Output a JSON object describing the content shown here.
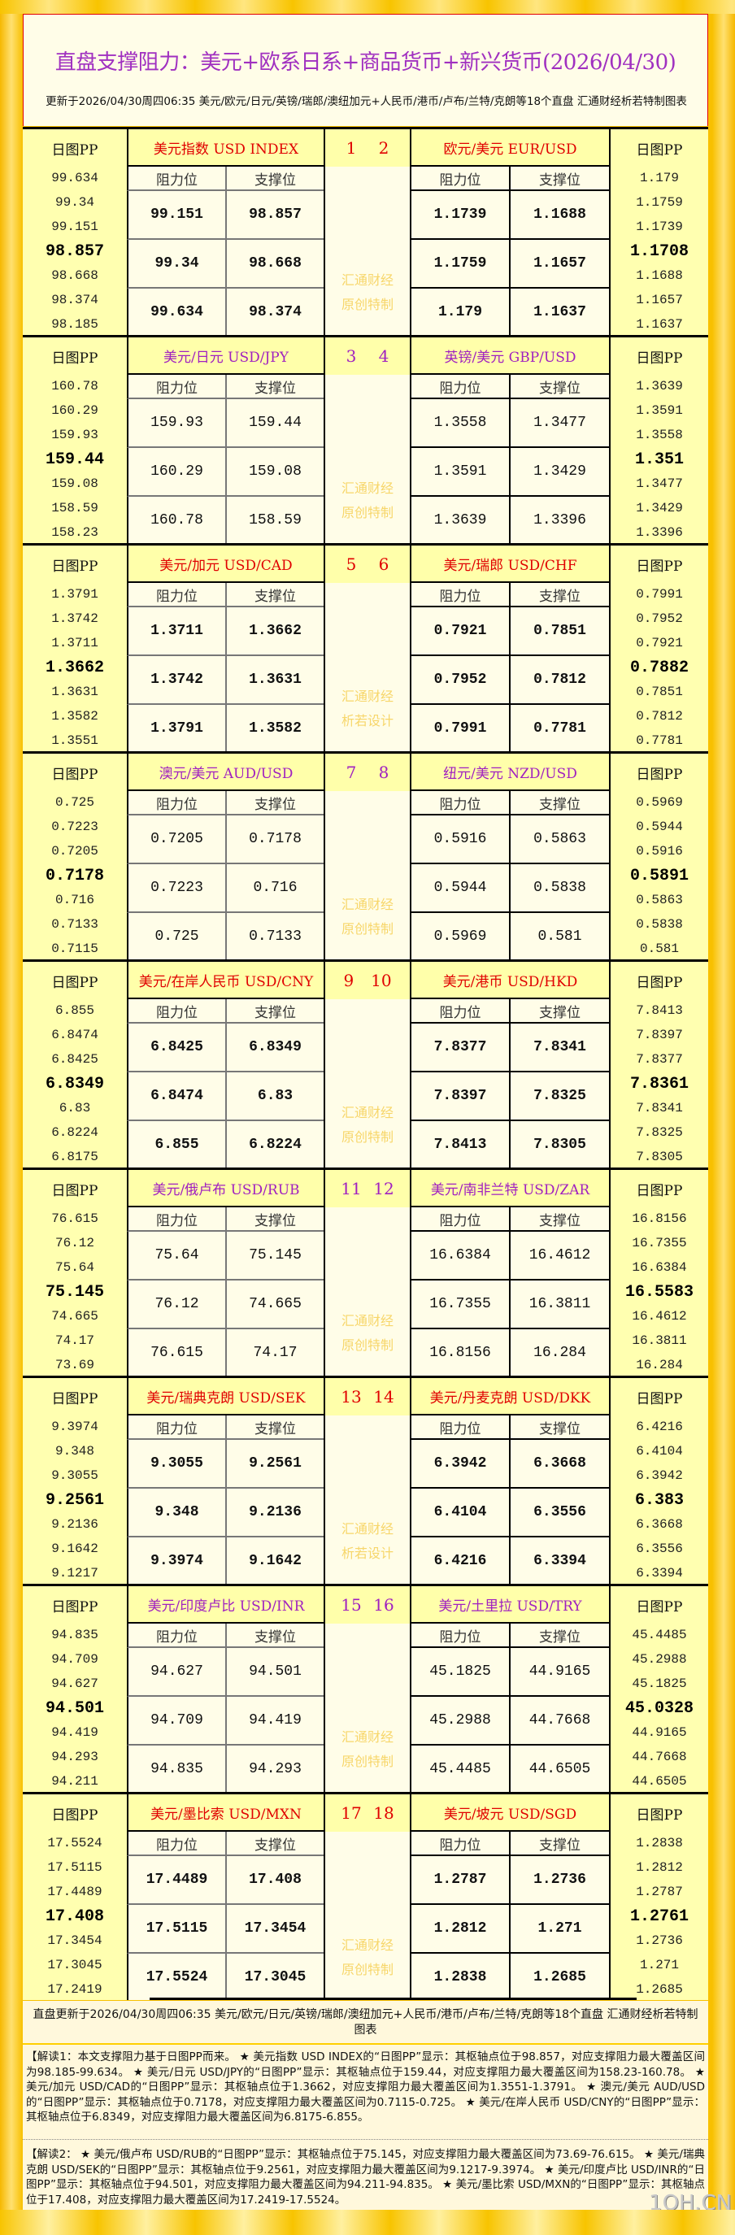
{
  "header": {
    "title": "直盘支撑阻力：美元+欧系日系+商品货币+新兴货币(2026/04/30)",
    "subtitle": "更新于2026/04/30周四06:35 美元/欧元/日元/英镑/瑞郎/澳纽加元+人民币/港币/卢布/兰特/克朗等18个直盘 汇通财经析若特制图表"
  },
  "labels": {
    "pp": "日图PP",
    "resistance": "阻力位",
    "support": "支撑位",
    "wm1": "汇通财经"
  },
  "colors": {
    "red": "#e00000",
    "purple": "#a020c0",
    "frame": "#f8c000",
    "pp_bg": "#ffffb0"
  },
  "blocks": [
    {
      "color": "red",
      "bold": true,
      "wm2": "原创特制",
      "nums": [
        "1",
        "2"
      ],
      "left": {
        "name": "美元指数 USD INDEX",
        "pp": [
          "99.634",
          "99.34",
          "99.151",
          "98.857",
          "98.668",
          "98.374",
          "98.185"
        ],
        "rows": [
          [
            "99.151",
            "98.857"
          ],
          [
            "99.34",
            "98.668"
          ],
          [
            "99.634",
            "98.374"
          ]
        ]
      },
      "right": {
        "name": "欧元/美元 EUR/USD",
        "pp": [
          "1.179",
          "1.1759",
          "1.1739",
          "1.1708",
          "1.1688",
          "1.1657",
          "1.1637"
        ],
        "rows": [
          [
            "1.1739",
            "1.1688"
          ],
          [
            "1.1759",
            "1.1657"
          ],
          [
            "1.179",
            "1.1637"
          ]
        ]
      }
    },
    {
      "color": "purple",
      "bold": false,
      "wm2": "原创特制",
      "nums": [
        "3",
        "4"
      ],
      "left": {
        "name": "美元/日元 USD/JPY",
        "pp": [
          "160.78",
          "160.29",
          "159.93",
          "159.44",
          "159.08",
          "158.59",
          "158.23"
        ],
        "rows": [
          [
            "159.93",
            "159.44"
          ],
          [
            "160.29",
            "159.08"
          ],
          [
            "160.78",
            "158.59"
          ]
        ]
      },
      "right": {
        "name": "英镑/美元 GBP/USD",
        "pp": [
          "1.3639",
          "1.3591",
          "1.3558",
          "1.351",
          "1.3477",
          "1.3429",
          "1.3396"
        ],
        "rows": [
          [
            "1.3558",
            "1.3477"
          ],
          [
            "1.3591",
            "1.3429"
          ],
          [
            "1.3639",
            "1.3396"
          ]
        ]
      }
    },
    {
      "color": "red",
      "bold": true,
      "wm2": "析若设计",
      "nums": [
        "5",
        "6"
      ],
      "left": {
        "name": "美元/加元 USD/CAD",
        "pp": [
          "1.3791",
          "1.3742",
          "1.3711",
          "1.3662",
          "1.3631",
          "1.3582",
          "1.3551"
        ],
        "rows": [
          [
            "1.3711",
            "1.3662"
          ],
          [
            "1.3742",
            "1.3631"
          ],
          [
            "1.3791",
            "1.3582"
          ]
        ]
      },
      "right": {
        "name": "美元/瑞郎 USD/CHF",
        "pp": [
          "0.7991",
          "0.7952",
          "0.7921",
          "0.7882",
          "0.7851",
          "0.7812",
          "0.7781"
        ],
        "rows": [
          [
            "0.7921",
            "0.7851"
          ],
          [
            "0.7952",
            "0.7812"
          ],
          [
            "0.7991",
            "0.7781"
          ]
        ]
      }
    },
    {
      "color": "purple",
      "bold": false,
      "wm2": "原创特制",
      "nums": [
        "7",
        "8"
      ],
      "left": {
        "name": "澳元/美元 AUD/USD",
        "pp": [
          "0.725",
          "0.7223",
          "0.7205",
          "0.7178",
          "0.716",
          "0.7133",
          "0.7115"
        ],
        "rows": [
          [
            "0.7205",
            "0.7178"
          ],
          [
            "0.7223",
            "0.716"
          ],
          [
            "0.725",
            "0.7133"
          ]
        ]
      },
      "right": {
        "name": "纽元/美元 NZD/USD",
        "pp": [
          "0.5969",
          "0.5944",
          "0.5916",
          "0.5891",
          "0.5863",
          "0.5838",
          "0.581"
        ],
        "rows": [
          [
            "0.5916",
            "0.5863"
          ],
          [
            "0.5944",
            "0.5838"
          ],
          [
            "0.5969",
            "0.581"
          ]
        ]
      }
    },
    {
      "color": "red",
      "bold": true,
      "wm2": "原创特制",
      "nums": [
        "9",
        "10"
      ],
      "left": {
        "name": "美元/在岸人民币 USD/CNY",
        "pp": [
          "6.855",
          "6.8474",
          "6.8425",
          "6.8349",
          "6.83",
          "6.8224",
          "6.8175"
        ],
        "rows": [
          [
            "6.8425",
            "6.8349"
          ],
          [
            "6.8474",
            "6.83"
          ],
          [
            "6.855",
            "6.8224"
          ]
        ]
      },
      "right": {
        "name": "美元/港币 USD/HKD",
        "pp": [
          "7.8413",
          "7.8397",
          "7.8377",
          "7.8361",
          "7.8341",
          "7.8325",
          "7.8305"
        ],
        "rows": [
          [
            "7.8377",
            "7.8341"
          ],
          [
            "7.8397",
            "7.8325"
          ],
          [
            "7.8413",
            "7.8305"
          ]
        ]
      }
    },
    {
      "color": "purple",
      "bold": false,
      "wm2": "原创特制",
      "nums": [
        "11",
        "12"
      ],
      "left": {
        "name": "美元/俄卢布 USD/RUB",
        "pp": [
          "76.615",
          "76.12",
          "75.64",
          "75.145",
          "74.665",
          "74.17",
          "73.69"
        ],
        "rows": [
          [
            "75.64",
            "75.145"
          ],
          [
            "76.12",
            "74.665"
          ],
          [
            "76.615",
            "74.17"
          ]
        ]
      },
      "right": {
        "name": "美元/南非兰特 USD/ZAR",
        "pp": [
          "16.8156",
          "16.7355",
          "16.6384",
          "16.5583",
          "16.4612",
          "16.3811",
          "16.284"
        ],
        "rows": [
          [
            "16.6384",
            "16.4612"
          ],
          [
            "16.7355",
            "16.3811"
          ],
          [
            "16.8156",
            "16.284"
          ]
        ]
      }
    },
    {
      "color": "red",
      "bold": true,
      "wm2": "析若设计",
      "nums": [
        "13",
        "14"
      ],
      "left": {
        "name": "美元/瑞典克朗 USD/SEK",
        "pp": [
          "9.3974",
          "9.348",
          "9.3055",
          "9.2561",
          "9.2136",
          "9.1642",
          "9.1217"
        ],
        "rows": [
          [
            "9.3055",
            "9.2561"
          ],
          [
            "9.348",
            "9.2136"
          ],
          [
            "9.3974",
            "9.1642"
          ]
        ]
      },
      "right": {
        "name": "美元/丹麦克朗 USD/DKK",
        "pp": [
          "6.4216",
          "6.4104",
          "6.3942",
          "6.383",
          "6.3668",
          "6.3556",
          "6.3394"
        ],
        "rows": [
          [
            "6.3942",
            "6.3668"
          ],
          [
            "6.4104",
            "6.3556"
          ],
          [
            "6.4216",
            "6.3394"
          ]
        ]
      }
    },
    {
      "color": "purple",
      "bold": false,
      "wm2": "原创特制",
      "nums": [
        "15",
        "16"
      ],
      "left": {
        "name": "美元/印度卢比 USD/INR",
        "pp": [
          "94.835",
          "94.709",
          "94.627",
          "94.501",
          "94.419",
          "94.293",
          "94.211"
        ],
        "rows": [
          [
            "94.627",
            "94.501"
          ],
          [
            "94.709",
            "94.419"
          ],
          [
            "94.835",
            "94.293"
          ]
        ]
      },
      "right": {
        "name": "美元/土里拉 USD/TRY",
        "pp": [
          "45.4485",
          "45.2988",
          "45.1825",
          "45.0328",
          "44.9165",
          "44.7668",
          "44.6505"
        ],
        "rows": [
          [
            "45.1825",
            "44.9165"
          ],
          [
            "45.2988",
            "44.7668"
          ],
          [
            "45.4485",
            "44.6505"
          ]
        ]
      }
    },
    {
      "color": "red",
      "bold": true,
      "wm2": "原创特制",
      "nums": [
        "17",
        "18"
      ],
      "left": {
        "name": "美元/墨比索 USD/MXN",
        "pp": [
          "17.5524",
          "17.5115",
          "17.4489",
          "17.408",
          "17.3454",
          "17.3045",
          "17.2419"
        ],
        "rows": [
          [
            "17.4489",
            "17.408"
          ],
          [
            "17.5115",
            "17.3454"
          ],
          [
            "17.5524",
            "17.3045"
          ]
        ]
      },
      "right": {
        "name": "美元/坡元 USD/SGD",
        "pp": [
          "1.2838",
          "1.2812",
          "1.2787",
          "1.2761",
          "1.2736",
          "1.271",
          "1.2685"
        ],
        "rows": [
          [
            "1.2787",
            "1.2736"
          ],
          [
            "1.2812",
            "1.271"
          ],
          [
            "1.2838",
            "1.2685"
          ]
        ]
      }
    }
  ],
  "footer": {
    "update": "直盘更新于2026/04/30周四06:35 美元/欧元/日元/英镑/瑞郎/澳纽加元+人民币/港币/卢布/兰特/克朗等18个直盘 汇通财经析若特制图表",
    "analysis1": "【解读1：本文支撑阻力基于日图PP而来。 ★ 美元指数 USD INDEX的“日图PP”显示：其枢轴点位于98.857，对应支撑阻力最大覆盖区间为98.185-99.634。 ★ 美元/日元 USD/JPY的“日图PP”显示：其枢轴点位于159.44，对应支撑阻力最大覆盖区间为158.23-160.78。 ★ 美元/加元 USD/CAD的“日图PP”显示：其枢轴点位于1.3662，对应支撑阻力最大覆盖区间为1.3551-1.3791。 ★ 澳元/美元 AUD/USD的“日图PP”显示：其枢轴点位于0.7178，对应支撑阻力最大覆盖区间为0.7115-0.725。 ★ 美元/在岸人民币 USD/CNY的“日图PP”显示：其枢轴点位于6.8349，对应支撑阻力最大覆盖区间为6.8175-6.855。",
    "analysis2": "【解读2： ★ 美元/俄卢布 USD/RUB的“日图PP”显示：其枢轴点位于75.145，对应支撑阻力最大覆盖区间为73.69-76.615。 ★ 美元/瑞典克朗 USD/SEK的“日图PP”显示：其枢轴点位于9.2561，对应支撑阻力最大覆盖区间为9.1217-9.3974。 ★ 美元/印度卢比 USD/INR的“日图PP”显示：其枢轴点位于94.501，对应支撑阻力最大覆盖区间为94.211-94.835。 ★ 美元/墨比索 USD/MXN的“日图PP”显示：其枢轴点位于17.408，对应支撑阻力最大覆盖区间为17.2419-17.5524。",
    "watermark": "1QH.CN"
  }
}
